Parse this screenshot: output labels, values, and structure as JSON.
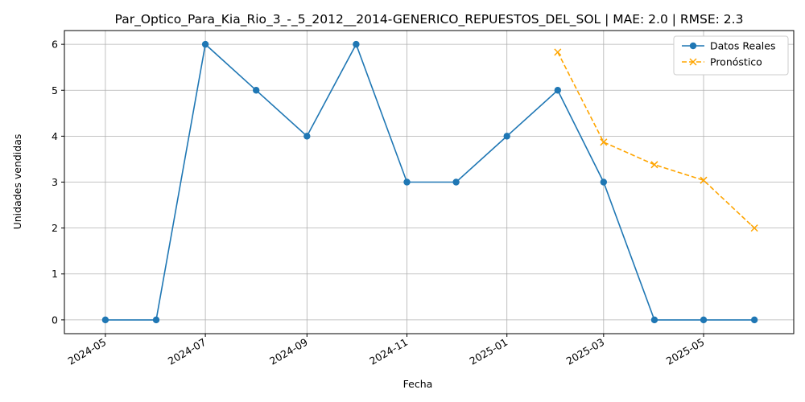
{
  "chart_data": {
    "type": "line",
    "title": "Par_Optico_Para_Kia_Rio_3_-_5_2012__2014-GENERICO_REPUESTOS_DEL_SOL | MAE: 2.0 | RMSE: 2.3",
    "xlabel": "Fecha",
    "ylabel": "Unidades vendidas",
    "ylim": [
      -0.3,
      6.3
    ],
    "yticks": [
      0,
      1,
      2,
      3,
      4,
      5,
      6
    ],
    "xticks": [
      "2024-05",
      "2024-07",
      "2024-09",
      "2024-11",
      "2025-01",
      "2025-03",
      "2025-05"
    ],
    "xlim": [
      "2024-04-06",
      "2025-06-25"
    ],
    "grid": true,
    "legend_position": "top-right",
    "series": [
      {
        "name": "Datos Reales",
        "color": "#1f77b4",
        "marker": "circle",
        "line_style": "solid",
        "x": [
          "2024-05-01",
          "2024-06-01",
          "2024-07-01",
          "2024-08-01",
          "2024-09-01",
          "2024-10-01",
          "2024-11-01",
          "2024-12-01",
          "2025-01-01",
          "2025-02-01",
          "2025-03-01",
          "2025-04-01",
          "2025-05-01",
          "2025-06-01"
        ],
        "values": [
          0,
          0,
          6,
          5,
          4,
          6,
          3,
          3,
          4,
          5,
          3,
          0,
          0,
          0
        ]
      },
      {
        "name": "Pronóstico",
        "color": "#ffa500",
        "marker": "x",
        "line_style": "dashed",
        "x": [
          "2025-02-01",
          "2025-03-01",
          "2025-04-01",
          "2025-05-01",
          "2025-06-01"
        ],
        "values": [
          5.83,
          3.87,
          3.38,
          3.04,
          2.0
        ]
      }
    ]
  }
}
